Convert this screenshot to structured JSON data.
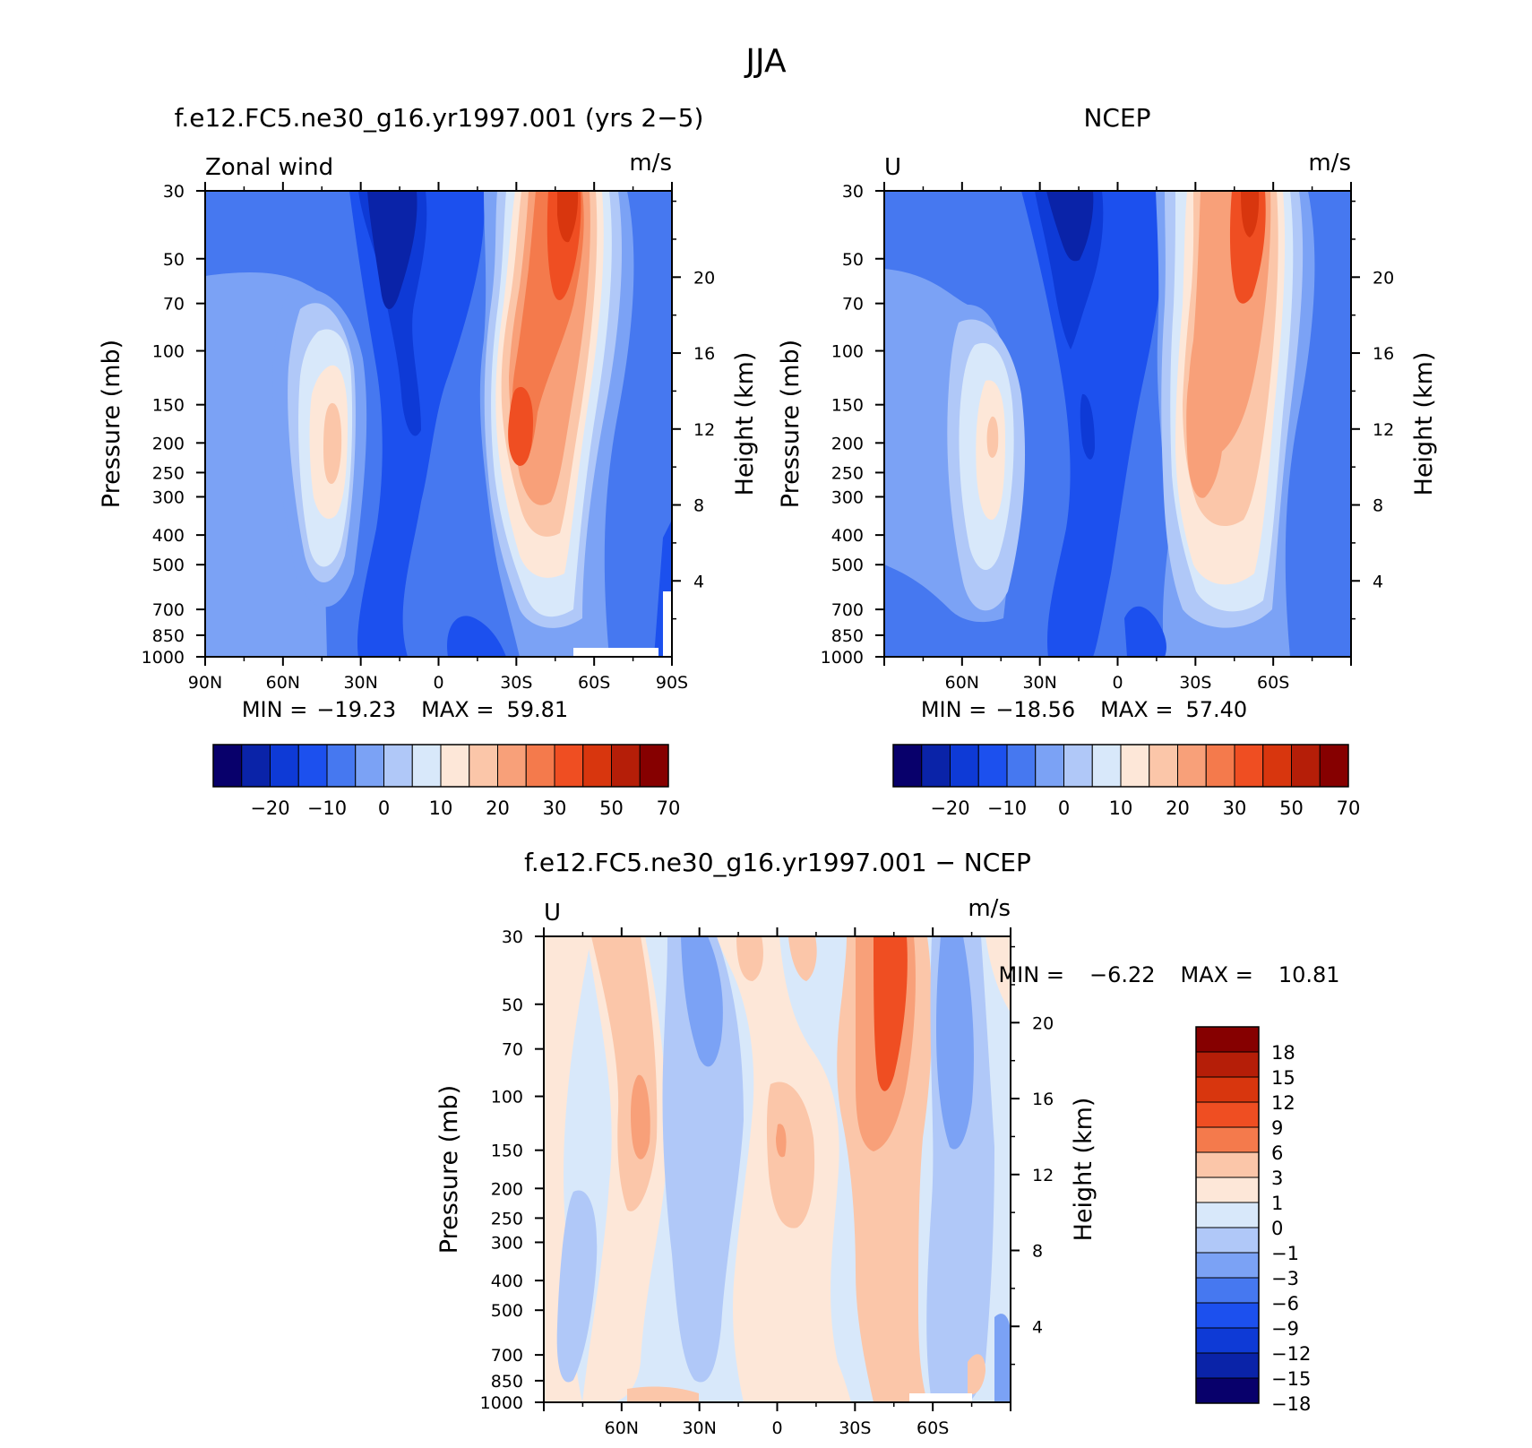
{
  "figure_title": "JJA",
  "chart_data": [
    {
      "type": "heatmap",
      "id": "model",
      "title": "f.e12.FC5.ne30_g16.yr1997.001 (yrs 2−5)",
      "left_label": "Zonal wind",
      "units": "m/s",
      "ylabel": "Pressure (mb)",
      "ylabel_right": "Height (km)",
      "pressure_ticks": [
        "30",
        "50",
        "70",
        "100",
        "150",
        "200",
        "250",
        "300",
        "400",
        "500",
        "700",
        "850",
        "1000"
      ],
      "height_ticks": [
        "20",
        "16",
        "12",
        "8",
        "4"
      ],
      "lat_ticks": [
        "90N",
        "60N",
        "30N",
        "0",
        "30S",
        "60S",
        "90S"
      ],
      "x_range": [
        90,
        -90
      ],
      "y_range": [
        1000,
        30
      ],
      "y_scale": "log",
      "min_label": "MIN =",
      "min_value": "−19.23",
      "max_label": "MAX =",
      "max_value": "59.81",
      "colorbar_labels": [
        "−20",
        "−10",
        "0",
        "10",
        "20",
        "30",
        "50",
        "70"
      ]
    },
    {
      "type": "heatmap",
      "id": "obs",
      "title": "NCEP",
      "left_label": "U",
      "units": "m/s",
      "ylabel": "Pressure (mb)",
      "ylabel_right": "Height (km)",
      "pressure_ticks": [
        "30",
        "50",
        "70",
        "100",
        "150",
        "200",
        "250",
        "300",
        "400",
        "500",
        "700",
        "850",
        "1000"
      ],
      "height_ticks": [
        "20",
        "16",
        "12",
        "8",
        "4"
      ],
      "lat_ticks": [
        "60N",
        "30N",
        "0",
        "30S",
        "60S"
      ],
      "x_range": [
        90,
        -90
      ],
      "y_range": [
        1000,
        30
      ],
      "y_scale": "log",
      "min_label": "MIN =",
      "min_value": "−18.56",
      "max_label": "MAX =",
      "max_value": "57.40",
      "colorbar_labels": [
        "−20",
        "−10",
        "0",
        "10",
        "20",
        "30",
        "50",
        "70"
      ]
    },
    {
      "type": "heatmap",
      "id": "diff",
      "title": "f.e12.FC5.ne30_g16.yr1997.001 − NCEP",
      "left_label": "U",
      "units": "m/s",
      "ylabel": "Pressure (mb)",
      "ylabel_right": "Height (km)",
      "pressure_ticks": [
        "30",
        "50",
        "70",
        "100",
        "150",
        "200",
        "250",
        "300",
        "400",
        "500",
        "700",
        "850",
        "1000"
      ],
      "height_ticks": [
        "20",
        "16",
        "12",
        "8",
        "4"
      ],
      "lat_ticks": [
        "60N",
        "30N",
        "0",
        "30S",
        "60S"
      ],
      "x_range": [
        90,
        -90
      ],
      "y_range": [
        1000,
        30
      ],
      "y_scale": "log",
      "min_label": "MIN =",
      "min_value": "−6.22",
      "max_label": "MAX =",
      "max_value": "10.81",
      "colorbar_labels": [
        "18",
        "15",
        "12",
        "9",
        "6",
        "3",
        "1",
        "0",
        "−1",
        "−3",
        "−6",
        "−9",
        "−12",
        "−15",
        "−18"
      ]
    }
  ],
  "full_colors": [
    "#08006b",
    "#0a23a8",
    "#0e3ad6",
    "#1c50ee",
    "#4678f0",
    "#7ba2f5",
    "#b0c8f8",
    "#d8e8fa",
    "#fde7d8",
    "#fbc6a9",
    "#f8a079",
    "#f47a4c",
    "#ef4e22",
    "#d8360e",
    "#b51e08",
    "#860000"
  ],
  "diff_colors": [
    "#860000",
    "#b51e08",
    "#d8360e",
    "#ef4e22",
    "#f47a4c",
    "#fbc6a9",
    "#fde7d8",
    "#d8e8fa",
    "#b0c8f8",
    "#7ba2f5",
    "#4678f0",
    "#1c50ee",
    "#0e3ad6",
    "#0a23a8",
    "#08006b"
  ]
}
